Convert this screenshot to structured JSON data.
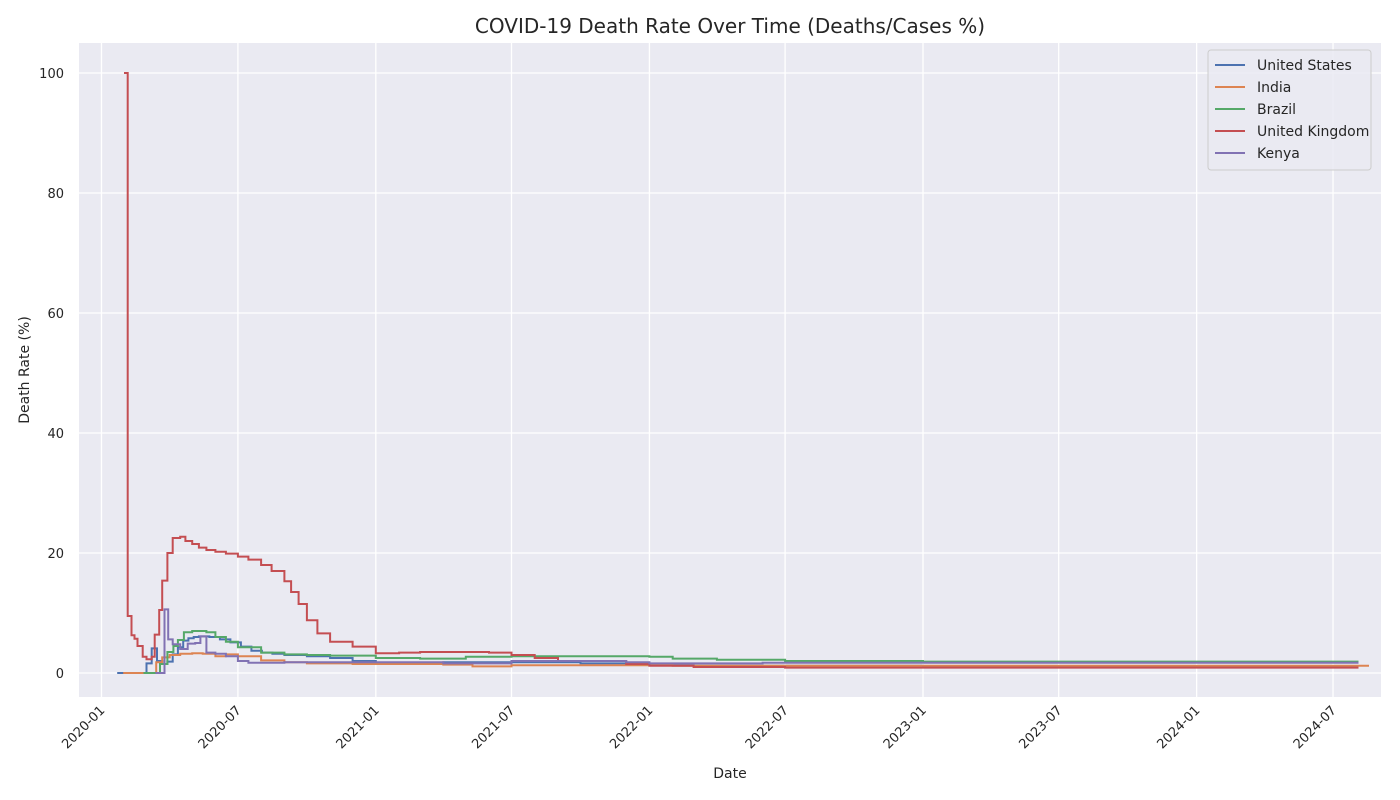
{
  "chart_data": {
    "type": "line",
    "title": "COVID-19 Death Rate Over Time (Deaths/Cases %)",
    "xlabel": "Date",
    "ylabel": "Death Rate (%)",
    "xlim": [
      "2019-12-02",
      "2024-09-03"
    ],
    "ylim": [
      -4,
      105
    ],
    "x_ticks": [
      "2020-01",
      "2020-07",
      "2021-01",
      "2021-07",
      "2022-01",
      "2022-07",
      "2023-01",
      "2023-07",
      "2024-01",
      "2024-07"
    ],
    "y_ticks": [
      0,
      20,
      40,
      60,
      80,
      100
    ],
    "grid": true,
    "legend_position": "top-right",
    "colors": {
      "plot_background": "#eaeaf2",
      "grid": "#ffffff"
    },
    "series": [
      {
        "name": "United States",
        "color": "#4c72b0",
        "points": [
          [
            "2020-01-22",
            0
          ],
          [
            "2020-02-28",
            0
          ],
          [
            "2020-03-01",
            1.6
          ],
          [
            "2020-03-08",
            4.1
          ],
          [
            "2020-03-15",
            2.0
          ],
          [
            "2020-03-22",
            1.5
          ],
          [
            "2020-03-29",
            1.9
          ],
          [
            "2020-04-05",
            3.1
          ],
          [
            "2020-04-12",
            4.3
          ],
          [
            "2020-04-19",
            5.4
          ],
          [
            "2020-04-26",
            5.8
          ],
          [
            "2020-05-03",
            6.0
          ],
          [
            "2020-05-10",
            6.1
          ],
          [
            "2020-05-24",
            6.0
          ],
          [
            "2020-06-07",
            5.6
          ],
          [
            "2020-06-21",
            5.1
          ],
          [
            "2020-07-05",
            4.4
          ],
          [
            "2020-07-19",
            3.7
          ],
          [
            "2020-08-02",
            3.4
          ],
          [
            "2020-08-16",
            3.2
          ],
          [
            "2020-09-01",
            3.0
          ],
          [
            "2020-10-01",
            2.8
          ],
          [
            "2020-11-01",
            2.5
          ],
          [
            "2020-12-01",
            2.0
          ],
          [
            "2021-01-01",
            1.7
          ],
          [
            "2021-02-01",
            1.7
          ],
          [
            "2021-04-01",
            1.8
          ],
          [
            "2021-07-01",
            1.8
          ],
          [
            "2021-10-01",
            1.6
          ],
          [
            "2022-01-01",
            1.3
          ],
          [
            "2022-03-01",
            1.2
          ],
          [
            "2023-01-01",
            1.1
          ],
          [
            "2024-08-04",
            1.1
          ]
        ]
      },
      {
        "name": "India",
        "color": "#dd8452",
        "points": [
          [
            "2020-01-30",
            0
          ],
          [
            "2020-03-12",
            0
          ],
          [
            "2020-03-14",
            1.8
          ],
          [
            "2020-03-22",
            2.6
          ],
          [
            "2020-04-01",
            3.0
          ],
          [
            "2020-04-15",
            3.2
          ],
          [
            "2020-05-01",
            3.3
          ],
          [
            "2020-05-15",
            3.2
          ],
          [
            "2020-06-01",
            2.8
          ],
          [
            "2020-06-15",
            3.1
          ],
          [
            "2020-07-01",
            2.8
          ],
          [
            "2020-08-01",
            2.1
          ],
          [
            "2020-09-01",
            1.8
          ],
          [
            "2020-10-01",
            1.6
          ],
          [
            "2020-12-01",
            1.5
          ],
          [
            "2021-04-01",
            1.4
          ],
          [
            "2021-05-10",
            1.1
          ],
          [
            "2021-07-01",
            1.3
          ],
          [
            "2021-10-01",
            1.3
          ],
          [
            "2022-02-01",
            1.2
          ],
          [
            "2024-08-18",
            1.2
          ]
        ]
      },
      {
        "name": "Brazil",
        "color": "#55a868",
        "points": [
          [
            "2020-02-26",
            0
          ],
          [
            "2020-03-17",
            0
          ],
          [
            "2020-03-19",
            1.5
          ],
          [
            "2020-03-29",
            3.5
          ],
          [
            "2020-04-06",
            4.5
          ],
          [
            "2020-04-12",
            5.5
          ],
          [
            "2020-04-20",
            6.8
          ],
          [
            "2020-05-01",
            7.0
          ],
          [
            "2020-05-20",
            6.8
          ],
          [
            "2020-06-01",
            6.0
          ],
          [
            "2020-06-15",
            5.2
          ],
          [
            "2020-07-01",
            4.3
          ],
          [
            "2020-08-01",
            3.4
          ],
          [
            "2020-09-01",
            3.1
          ],
          [
            "2020-10-01",
            3.0
          ],
          [
            "2020-11-01",
            2.9
          ],
          [
            "2021-01-01",
            2.5
          ],
          [
            "2021-03-01",
            2.4
          ],
          [
            "2021-05-01",
            2.7
          ],
          [
            "2021-07-01",
            2.8
          ],
          [
            "2021-12-01",
            2.8
          ],
          [
            "2022-01-01",
            2.7
          ],
          [
            "2022-02-01",
            2.4
          ],
          [
            "2022-04-01",
            2.2
          ],
          [
            "2022-07-01",
            2.0
          ],
          [
            "2023-01-01",
            1.9
          ],
          [
            "2024-08-04",
            1.9
          ]
        ]
      },
      {
        "name": "United Kingdom",
        "color": "#c44e52",
        "points": [
          [
            "2020-01-31",
            100
          ],
          [
            "2020-02-03",
            100
          ],
          [
            "2020-02-05",
            9.5
          ],
          [
            "2020-02-10",
            6.3
          ],
          [
            "2020-02-14",
            5.7
          ],
          [
            "2020-02-18",
            4.5
          ],
          [
            "2020-02-25",
            2.7
          ],
          [
            "2020-03-01",
            2.3
          ],
          [
            "2020-03-08",
            2.7
          ],
          [
            "2020-03-12",
            6.4
          ],
          [
            "2020-03-18",
            10.5
          ],
          [
            "2020-03-22",
            15.4
          ],
          [
            "2020-03-29",
            20.0
          ],
          [
            "2020-04-05",
            22.5
          ],
          [
            "2020-04-15",
            22.7
          ],
          [
            "2020-04-22",
            22.0
          ],
          [
            "2020-05-01",
            21.5
          ],
          [
            "2020-05-10",
            20.9
          ],
          [
            "2020-05-20",
            20.5
          ],
          [
            "2020-06-01",
            20.2
          ],
          [
            "2020-06-15",
            19.9
          ],
          [
            "2020-07-01",
            19.4
          ],
          [
            "2020-07-15",
            18.9
          ],
          [
            "2020-08-01",
            18.0
          ],
          [
            "2020-08-15",
            17.0
          ],
          [
            "2020-09-01",
            15.3
          ],
          [
            "2020-09-10",
            13.5
          ],
          [
            "2020-09-20",
            11.5
          ],
          [
            "2020-10-01",
            8.8
          ],
          [
            "2020-10-15",
            6.6
          ],
          [
            "2020-11-01",
            5.2
          ],
          [
            "2020-12-01",
            4.4
          ],
          [
            "2021-01-01",
            3.3
          ],
          [
            "2021-02-01",
            3.4
          ],
          [
            "2021-03-01",
            3.5
          ],
          [
            "2021-06-01",
            3.4
          ],
          [
            "2021-07-01",
            3.0
          ],
          [
            "2021-08-01",
            2.5
          ],
          [
            "2021-09-01",
            2.0
          ],
          [
            "2021-12-01",
            1.5
          ],
          [
            "2022-01-01",
            1.2
          ],
          [
            "2022-03-01",
            1.0
          ],
          [
            "2022-07-01",
            0.9
          ],
          [
            "2024-08-04",
            0.9
          ]
        ]
      },
      {
        "name": "Kenya",
        "color": "#8172b3",
        "points": [
          [
            "2020-03-13",
            0
          ],
          [
            "2020-03-23",
            0
          ],
          [
            "2020-03-25",
            10.6
          ],
          [
            "2020-03-30",
            5.6
          ],
          [
            "2020-04-05",
            4.8
          ],
          [
            "2020-04-15",
            4.0
          ],
          [
            "2020-04-25",
            4.9
          ],
          [
            "2020-05-05",
            5.0
          ],
          [
            "2020-05-12",
            6.1
          ],
          [
            "2020-05-20",
            3.4
          ],
          [
            "2020-06-01",
            3.2
          ],
          [
            "2020-06-15",
            2.8
          ],
          [
            "2020-07-01",
            2.0
          ],
          [
            "2020-07-15",
            1.7
          ],
          [
            "2020-08-01",
            1.7
          ],
          [
            "2020-09-01",
            1.8
          ],
          [
            "2020-11-01",
            1.8
          ],
          [
            "2021-01-01",
            1.8
          ],
          [
            "2021-04-01",
            1.6
          ],
          [
            "2021-07-01",
            2.0
          ],
          [
            "2021-10-01",
            2.0
          ],
          [
            "2021-12-01",
            1.8
          ],
          [
            "2022-01-01",
            1.6
          ],
          [
            "2022-06-01",
            1.7
          ],
          [
            "2024-08-04",
            1.7
          ]
        ]
      }
    ]
  }
}
